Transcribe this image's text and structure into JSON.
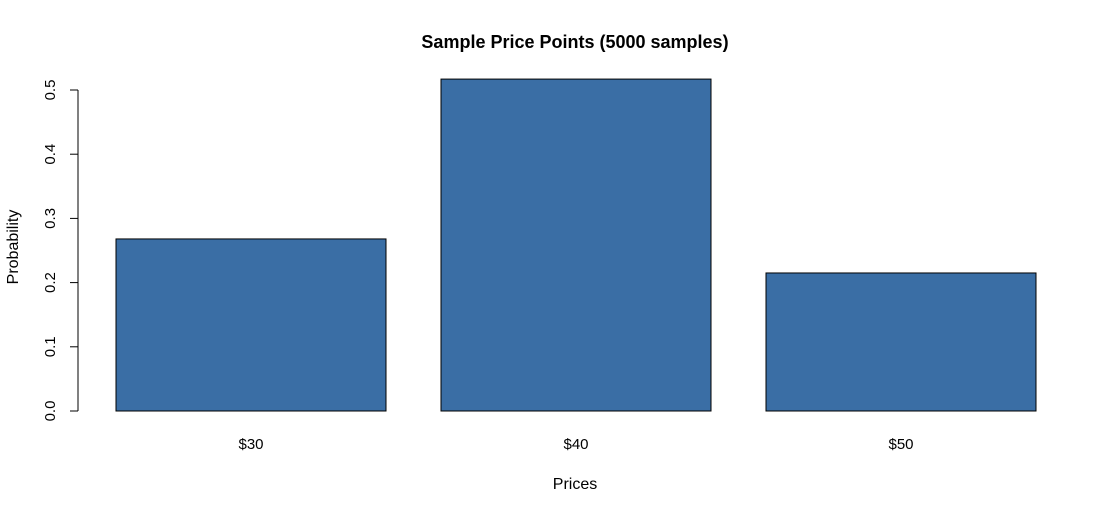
{
  "chart_data": {
    "type": "bar",
    "title": "Sample Price Points (5000 samples)",
    "xlabel": "Prices",
    "ylabel": "Probability",
    "categories": [
      "$30",
      "$40",
      "$50"
    ],
    "values": [
      0.268,
      0.517,
      0.215
    ],
    "ylim": [
      0,
      0.5
    ],
    "yticks": [
      "0.0",
      "0.1",
      "0.2",
      "0.3",
      "0.4",
      "0.5"
    ],
    "bar_color": "#3A6EA5",
    "bar_border_color": "#000000",
    "grid": false,
    "legend": "none"
  }
}
